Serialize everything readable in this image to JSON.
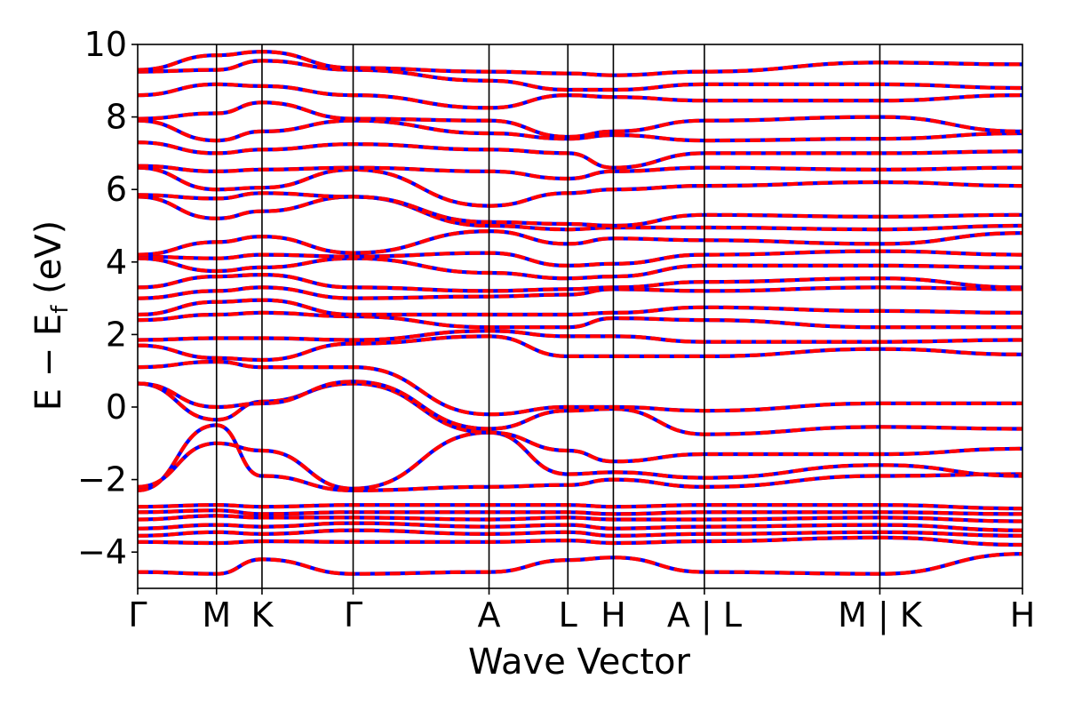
{
  "chart_data": {
    "type": "line",
    "xlabel": "Wave Vector",
    "ylabel_main": "E − E",
    "ylabel_sub": "f",
    "ylabel_unit": " (eV)",
    "ylim": [
      -5,
      10
    ],
    "yticks": [
      -4,
      -2,
      0,
      2,
      4,
      6,
      8,
      10
    ],
    "ytick_labels": [
      "−4",
      "−2",
      "0",
      "2",
      "4",
      "6",
      "8",
      "10"
    ],
    "grid": false,
    "legend": "none",
    "path_positions": [
      0,
      0.0891,
      0.1405,
      0.2435,
      0.3971,
      0.4862,
      0.5376,
      0.6405,
      0.8388,
      1.0
    ],
    "kpoint_labels": [
      "Γ",
      "M",
      "K",
      "Γ",
      "A",
      "L",
      "H",
      "A | L",
      "M | K",
      "H"
    ],
    "colors": {
      "spin_up": "#ff0000",
      "spin_down": "#0000ff",
      "divider": "#000000"
    },
    "series": [
      {
        "values": [
          -4.55,
          -4.6,
          -4.2,
          -4.6,
          -4.55,
          -4.22,
          -4.15,
          -4.55,
          -4.6,
          -4.05
        ]
      },
      {
        "values": [
          -3.72,
          -3.75,
          -3.7,
          -3.72,
          -3.72,
          -3.68,
          -3.75,
          -3.7,
          -3.6,
          -3.8
        ]
      },
      {
        "values": [
          -3.55,
          -3.45,
          -3.5,
          -3.4,
          -3.5,
          -3.45,
          -3.55,
          -3.5,
          -3.45,
          -3.55
        ]
      },
      {
        "values": [
          -3.35,
          -3.25,
          -3.3,
          -3.2,
          -3.3,
          -3.25,
          -3.35,
          -3.3,
          -3.25,
          -3.4
        ]
      },
      {
        "values": [
          -3.1,
          -3.0,
          -3.05,
          -3.05,
          -3.1,
          -3.05,
          -3.1,
          -3.1,
          -3.05,
          -3.15
        ]
      },
      {
        "values": [
          -2.9,
          -2.85,
          -2.95,
          -2.9,
          -2.9,
          -2.9,
          -2.95,
          -2.9,
          -2.9,
          -2.95
        ]
      },
      {
        "values": [
          -2.75,
          -2.7,
          -2.75,
          -2.7,
          -2.7,
          -2.7,
          -2.75,
          -2.7,
          -2.7,
          -2.8
        ]
      },
      {
        "values": [
          -2.3,
          -0.5,
          -1.9,
          -2.3,
          -2.2,
          -2.15,
          -2.0,
          -2.2,
          -1.9,
          -1.85
        ]
      },
      {
        "values": [
          -2.2,
          -1.0,
          -1.2,
          -2.25,
          -0.7,
          -1.85,
          -1.8,
          -1.95,
          -1.6,
          -1.9
        ]
      },
      {
        "values": [
          0.65,
          -0.35,
          0.15,
          0.65,
          -0.7,
          -1.2,
          -1.5,
          -1.3,
          -1.3,
          -1.15
        ]
      },
      {
        "values": [
          0.65,
          0.0,
          0.1,
          0.7,
          -0.6,
          -0.1,
          -0.05,
          -0.75,
          -0.55,
          -0.6
        ]
      },
      {
        "values": [
          1.1,
          1.25,
          1.1,
          1.1,
          -0.2,
          0.0,
          0.0,
          -0.1,
          0.1,
          0.1
        ]
      },
      {
        "values": [
          1.7,
          1.35,
          1.3,
          1.75,
          1.95,
          1.4,
          1.4,
          1.4,
          1.6,
          1.45
        ]
      },
      {
        "values": [
          1.85,
          1.9,
          1.9,
          1.85,
          2.1,
          1.95,
          1.95,
          1.8,
          1.8,
          1.85
        ]
      },
      {
        "values": [
          2.4,
          2.55,
          2.6,
          2.5,
          2.2,
          2.2,
          2.45,
          2.4,
          2.2,
          2.2
        ]
      },
      {
        "values": [
          2.55,
          2.9,
          2.95,
          2.55,
          2.55,
          2.55,
          2.6,
          2.75,
          2.65,
          2.6
        ]
      },
      {
        "values": [
          3.0,
          3.2,
          3.3,
          3.0,
          3.05,
          3.1,
          3.25,
          3.2,
          3.3,
          3.25
        ]
      },
      {
        "values": [
          3.3,
          3.6,
          3.65,
          3.3,
          3.2,
          3.25,
          3.3,
          3.45,
          3.55,
          3.3
        ]
      },
      {
        "values": [
          4.1,
          3.75,
          3.85,
          4.1,
          3.7,
          3.55,
          3.6,
          3.9,
          3.9,
          3.85
        ]
      },
      {
        "values": [
          4.15,
          4.1,
          4.2,
          4.15,
          4.25,
          3.9,
          3.95,
          4.2,
          4.3,
          4.2
        ]
      },
      {
        "values": [
          4.2,
          4.55,
          4.7,
          4.25,
          4.85,
          4.5,
          4.65,
          4.6,
          4.5,
          4.8
        ]
      },
      {
        "values": [
          5.8,
          5.2,
          5.4,
          5.8,
          5.0,
          4.9,
          4.95,
          4.95,
          4.9,
          5.0
        ]
      },
      {
        "values": [
          5.85,
          5.75,
          5.9,
          5.8,
          5.1,
          5.05,
          5.0,
          5.3,
          5.25,
          5.3
        ]
      },
      {
        "values": [
          6.6,
          6.0,
          6.05,
          6.55,
          5.55,
          5.9,
          6.0,
          6.1,
          6.2,
          6.1
        ]
      },
      {
        "values": [
          6.65,
          6.5,
          6.55,
          6.6,
          6.5,
          6.3,
          6.5,
          6.6,
          6.55,
          6.6
        ]
      },
      {
        "values": [
          7.3,
          7.0,
          7.1,
          7.25,
          7.1,
          7.0,
          6.6,
          7.0,
          7.0,
          7.05
        ]
      },
      {
        "values": [
          7.9,
          7.35,
          7.6,
          7.9,
          7.55,
          7.4,
          7.5,
          7.35,
          7.4,
          7.55
        ]
      },
      {
        "values": [
          7.95,
          8.1,
          8.4,
          7.95,
          7.9,
          7.45,
          7.6,
          7.9,
          8.0,
          7.6
        ]
      },
      {
        "values": [
          8.6,
          8.9,
          8.85,
          8.6,
          8.25,
          8.6,
          8.55,
          8.45,
          8.45,
          8.6
        ]
      },
      {
        "values": [
          9.25,
          9.3,
          9.55,
          9.3,
          9.0,
          8.75,
          8.75,
          8.9,
          8.9,
          8.8
        ]
      },
      {
        "values": [
          9.3,
          9.7,
          9.8,
          9.35,
          9.25,
          9.2,
          9.15,
          9.25,
          9.5,
          9.45
        ]
      }
    ]
  }
}
